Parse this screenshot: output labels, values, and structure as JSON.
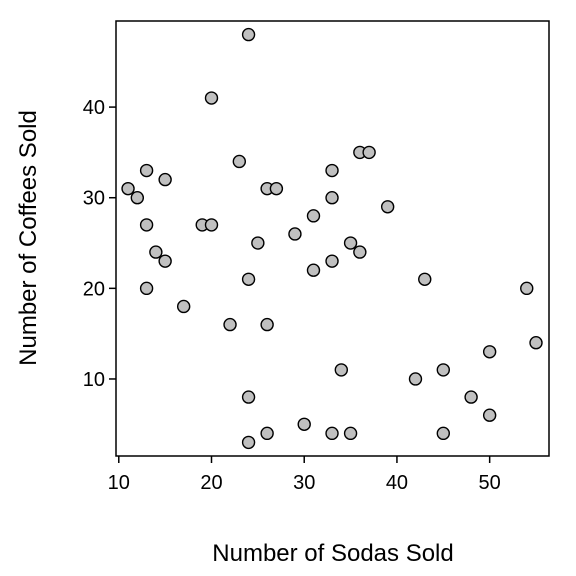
{
  "chart_data": {
    "type": "scatter",
    "title": "",
    "xlabel": "Number of Sodas Sold",
    "ylabel": "Number of Coffees Sold",
    "xlim": [
      9.7,
      56.4
    ],
    "ylim": [
      1.5,
      49.5
    ],
    "xticks": [
      10,
      20,
      30,
      40,
      50
    ],
    "yticks": [
      10,
      20,
      30,
      40
    ],
    "grid": false,
    "marker_fill": "#c0c0c0",
    "marker_edge": "#000000",
    "points": [
      {
        "x": 11,
        "y": 31
      },
      {
        "x": 12,
        "y": 30
      },
      {
        "x": 13,
        "y": 33
      },
      {
        "x": 13,
        "y": 27
      },
      {
        "x": 13,
        "y": 20
      },
      {
        "x": 14,
        "y": 24
      },
      {
        "x": 15,
        "y": 32
      },
      {
        "x": 15,
        "y": 23
      },
      {
        "x": 17,
        "y": 18
      },
      {
        "x": 19,
        "y": 27
      },
      {
        "x": 20,
        "y": 27
      },
      {
        "x": 20,
        "y": 41
      },
      {
        "x": 22,
        "y": 16
      },
      {
        "x": 23,
        "y": 34
      },
      {
        "x": 24,
        "y": 48
      },
      {
        "x": 24,
        "y": 21
      },
      {
        "x": 24,
        "y": 8
      },
      {
        "x": 24,
        "y": 3
      },
      {
        "x": 25,
        "y": 25
      },
      {
        "x": 26,
        "y": 31
      },
      {
        "x": 26,
        "y": 16
      },
      {
        "x": 26,
        "y": 4
      },
      {
        "x": 27,
        "y": 31
      },
      {
        "x": 29,
        "y": 26
      },
      {
        "x": 30,
        "y": 5
      },
      {
        "x": 31,
        "y": 28
      },
      {
        "x": 31,
        "y": 22
      },
      {
        "x": 33,
        "y": 33
      },
      {
        "x": 33,
        "y": 30
      },
      {
        "x": 33,
        "y": 23
      },
      {
        "x": 33,
        "y": 4
      },
      {
        "x": 34,
        "y": 11
      },
      {
        "x": 35,
        "y": 25
      },
      {
        "x": 35,
        "y": 4
      },
      {
        "x": 36,
        "y": 35
      },
      {
        "x": 36,
        "y": 24
      },
      {
        "x": 37,
        "y": 35
      },
      {
        "x": 39,
        "y": 29
      },
      {
        "x": 42,
        "y": 10
      },
      {
        "x": 43,
        "y": 21
      },
      {
        "x": 45,
        "y": 11
      },
      {
        "x": 45,
        "y": 4
      },
      {
        "x": 48,
        "y": 8
      },
      {
        "x": 50,
        "y": 13
      },
      {
        "x": 50,
        "y": 6
      },
      {
        "x": 54,
        "y": 20
      },
      {
        "x": 55,
        "y": 14
      }
    ]
  }
}
